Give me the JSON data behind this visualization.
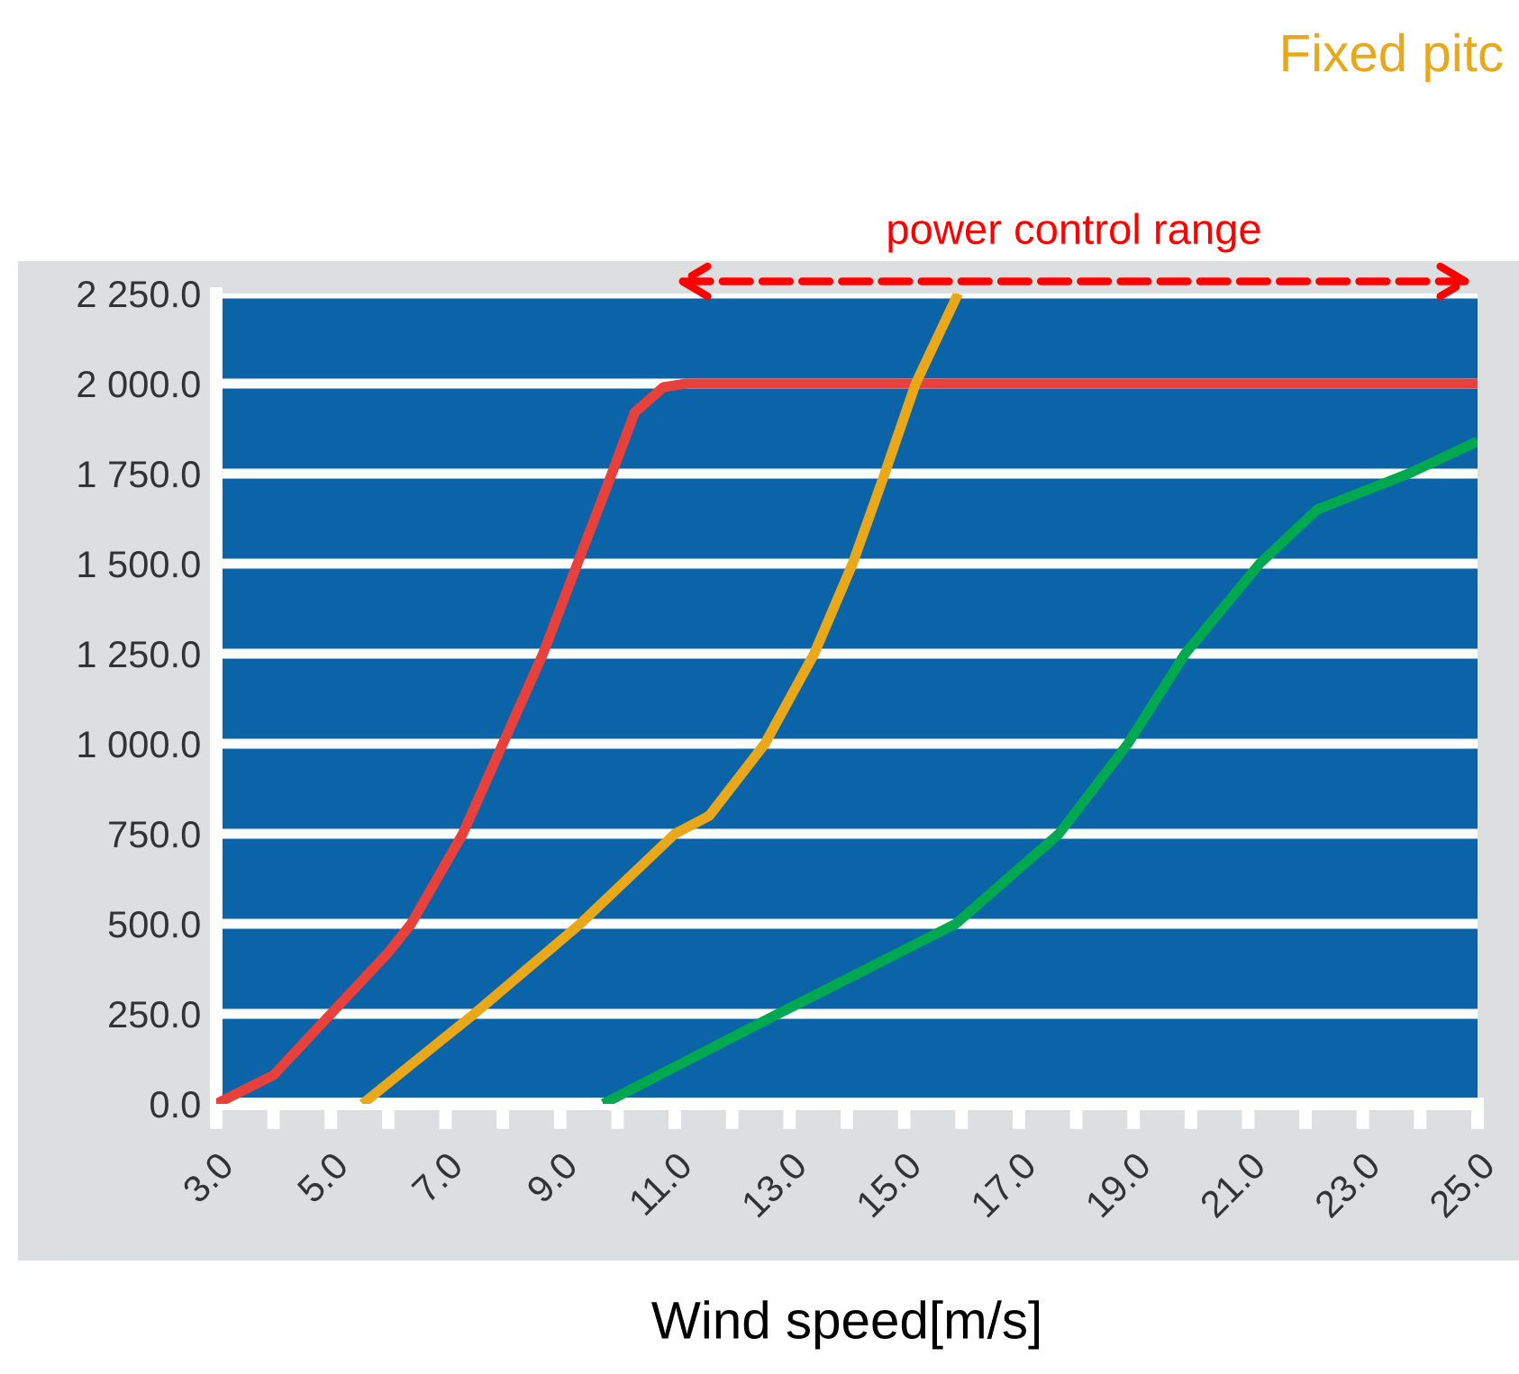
{
  "chart_data": {
    "type": "line",
    "xlabel": "Wind speed[m/s]",
    "series": [
      {
        "color": "#e8413c",
        "x": [
          3,
          4,
          5,
          6,
          6.4,
          7.3,
          8,
          8.7,
          9.3,
          9.9,
          10.3,
          10.8,
          11.2,
          25
        ],
        "values": [
          0,
          80,
          250,
          420,
          500,
          750,
          1000,
          1250,
          1500,
          1750,
          1920,
          1990,
          2000,
          2000
        ]
      },
      {
        "name": "Fixed pitc",
        "color": "#e8a81a",
        "x": [
          5.55,
          7.5,
          9.35,
          11,
          11.6,
          12.57,
          13.43,
          14.1,
          14.66,
          15.2,
          15.94
        ],
        "values": [
          0,
          250,
          500,
          750,
          800,
          1000,
          1250,
          1500,
          1750,
          2000,
          2250
        ]
      },
      {
        "color": "#00a94f",
        "x": [
          9.75,
          12.8,
          15.9,
          17.7,
          18.9,
          19.9,
          21.2,
          22.2,
          23.8,
          25
        ],
        "values": [
          0,
          250,
          500,
          750,
          1000,
          1250,
          1500,
          1650,
          1750,
          1840
        ]
      }
    ],
    "xlim": [
      3,
      25
    ],
    "ylim": [
      0,
      2250
    ],
    "xticks": [
      {
        "value": 3,
        "label": "3.0"
      },
      {
        "value": 4,
        "label": null
      },
      {
        "value": 5,
        "label": "5.0"
      },
      {
        "value": 6,
        "label": null
      },
      {
        "value": 7,
        "label": "7.0"
      },
      {
        "value": 8,
        "label": null
      },
      {
        "value": 9,
        "label": "9.0"
      },
      {
        "value": 10,
        "label": null
      },
      {
        "value": 11,
        "label": "11.0"
      },
      {
        "value": 12,
        "label": null
      },
      {
        "value": 13,
        "label": "13.0"
      },
      {
        "value": 14,
        "label": null
      },
      {
        "value": 15,
        "label": "15.0"
      },
      {
        "value": 16,
        "label": null
      },
      {
        "value": 17,
        "label": "17.0"
      },
      {
        "value": 18,
        "label": null
      },
      {
        "value": 19,
        "label": "19.0"
      },
      {
        "value": 20,
        "label": null
      },
      {
        "value": 21,
        "label": "21.0"
      },
      {
        "value": 22,
        "label": null
      },
      {
        "value": 23,
        "label": "23.0"
      },
      {
        "value": 24,
        "label": null
      },
      {
        "value": 25,
        "label": "25.0"
      }
    ],
    "yticks": [
      {
        "value": 0,
        "label": "0.0"
      },
      {
        "value": 250,
        "label": "250.0"
      },
      {
        "value": 500,
        "label": "500.0"
      },
      {
        "value": 750,
        "label": "750.0"
      },
      {
        "value": 1000,
        "label": "1 000.0"
      },
      {
        "value": 1250,
        "label": "1 250.0"
      },
      {
        "value": 1500,
        "label": "1 500.0"
      },
      {
        "value": 1750,
        "label": "1 750.0"
      },
      {
        "value": 2000,
        "label": "2 000.0"
      },
      {
        "value": 2250,
        "label": "2 250.0"
      }
    ],
    "annotations": [
      "power control range"
    ],
    "grid": "y",
    "marker": "none",
    "line_style": "solid"
  }
}
